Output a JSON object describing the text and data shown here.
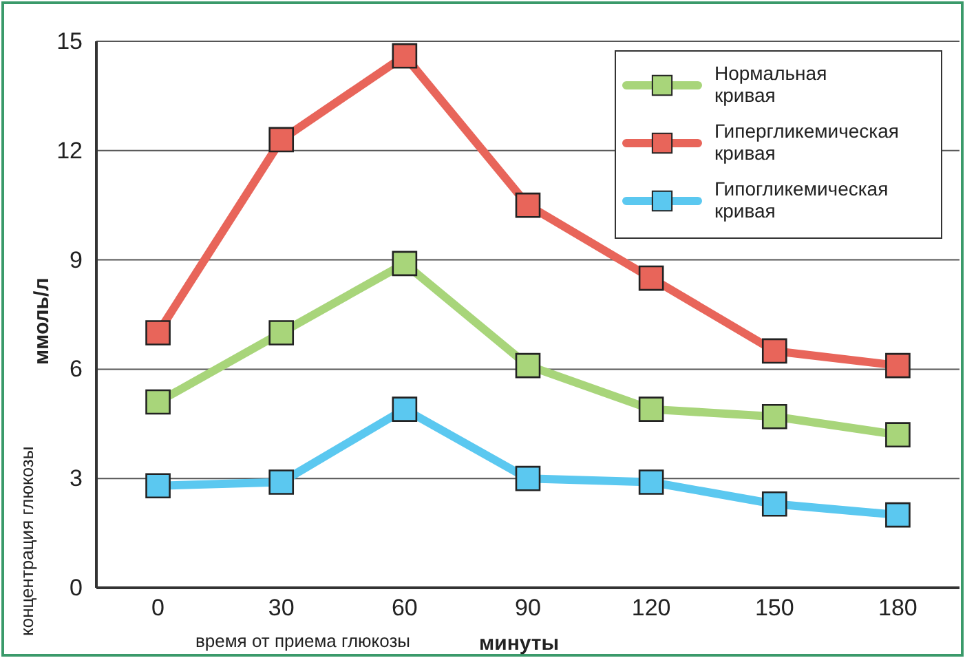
{
  "chart_data": {
    "type": "line",
    "xlabel": "время от приема глюкозы",
    "ylabel": "концентрация глюкозы",
    "annotations": [
      "минуты",
      "ммоль/л"
    ],
    "x": [
      0,
      30,
      60,
      90,
      120,
      150,
      180
    ],
    "xlim": [
      -15,
      195
    ],
    "xticks": [
      0,
      30,
      60,
      90,
      120,
      150,
      180
    ],
    "ylim": [
      0,
      15
    ],
    "yticks": [
      0,
      3,
      6,
      9,
      12,
      15
    ],
    "grid": "y",
    "legend": "top right",
    "marker": "square",
    "line_style": "solid",
    "series": [
      {
        "name": "Нормальная кривая",
        "color": "#a8d57a",
        "values": [
          5.1,
          7.0,
          8.9,
          6.1,
          4.9,
          4.7,
          4.2
        ]
      },
      {
        "name": "Гипергликемическая кривая",
        "color": "#e8655a",
        "values": [
          7.0,
          12.3,
          14.6,
          10.5,
          8.5,
          6.5,
          6.1
        ]
      },
      {
        "name": "Гипогликемическая кривая",
        "color": "#5bc8f0",
        "values": [
          2.8,
          2.9,
          4.9,
          3.0,
          2.9,
          2.3,
          2.0
        ]
      }
    ]
  }
}
